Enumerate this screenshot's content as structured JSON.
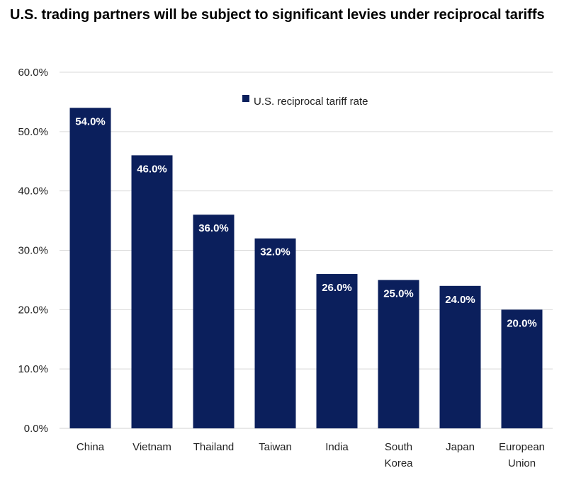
{
  "chart_data": {
    "type": "bar",
    "title": "U.S. trading partners will be subject to significant levies under reciprocal tariffs",
    "categories": [
      "China",
      "Vietnam",
      "Thailand",
      "Taiwan",
      "India",
      "South Korea",
      "Japan",
      "European Union"
    ],
    "category_lines": [
      [
        "China"
      ],
      [
        "Vietnam"
      ],
      [
        "Thailand"
      ],
      [
        "Taiwan"
      ],
      [
        "India"
      ],
      [
        "South",
        "Korea"
      ],
      [
        "Japan"
      ],
      [
        "European",
        "Union"
      ]
    ],
    "series": [
      {
        "name": "U.S. reciprocal tariff rate",
        "values": [
          54.0,
          46.0,
          36.0,
          32.0,
          26.0,
          25.0,
          24.0,
          20.0
        ],
        "labels": [
          "54.0%",
          "46.0%",
          "36.0%",
          "32.0%",
          "26.0%",
          "25.0%",
          "24.0%",
          "20.0%"
        ],
        "color": "#0b1f5c"
      }
    ],
    "y_ticks": [
      0,
      10,
      20,
      30,
      40,
      50,
      60
    ],
    "y_tick_labels": [
      "0.0%",
      "10.0%",
      "20.0%",
      "30.0%",
      "40.0%",
      "50.0%",
      "60.0%"
    ],
    "ylim": [
      0,
      60
    ],
    "grid": true,
    "gridline_color": "#d9d9d9",
    "legend_position": "top-right"
  }
}
